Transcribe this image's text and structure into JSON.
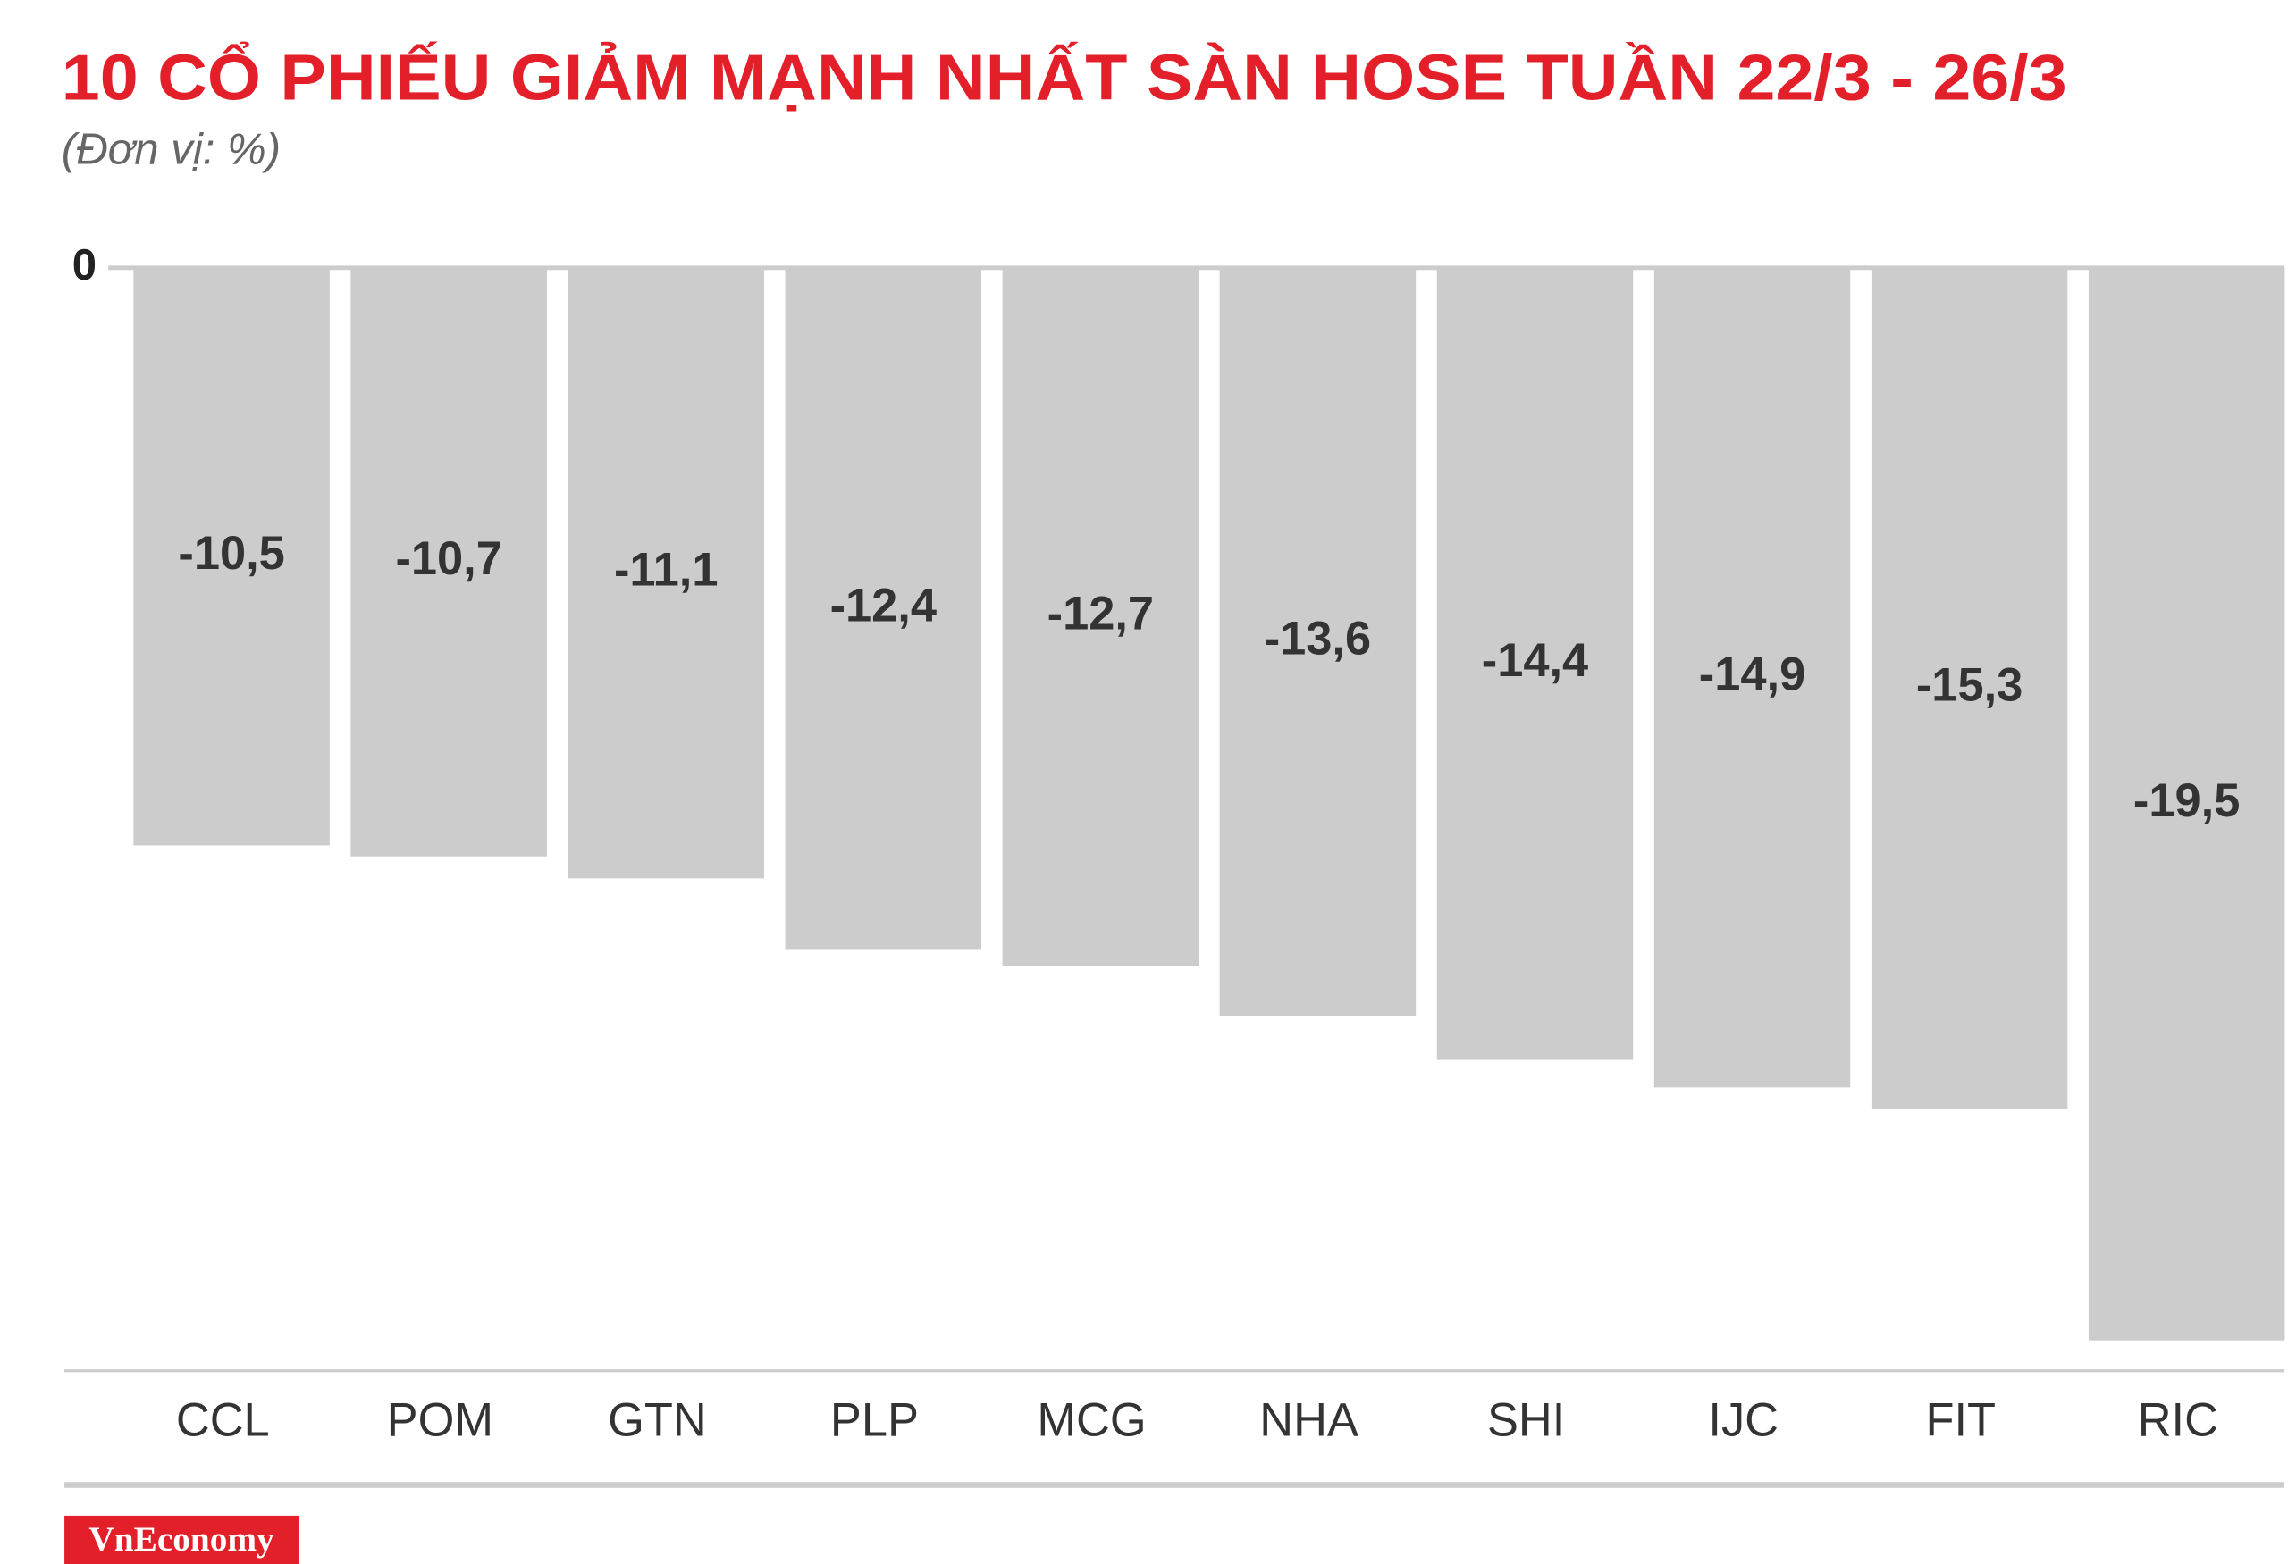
{
  "chart_data": {
    "type": "bar",
    "title": "10 CỔ PHIẾU GIẢM MẠNH NHẤT SÀN HOSE TUẦN 22/3 - 26/3",
    "subtitle": "(Đơn vị: %)",
    "categories": [
      "CCL",
      "POM",
      "GTN",
      "PLP",
      "MCG",
      "NHA",
      "SHI",
      "IJC",
      "FIT",
      "RIC"
    ],
    "values": [
      -10.5,
      -10.7,
      -11.1,
      -12.4,
      -12.7,
      -13.6,
      -14.4,
      -14.9,
      -15.3,
      -19.5
    ],
    "value_labels": [
      "-10,5",
      "-10,7",
      "-11,1",
      "-12,4",
      "-12,7",
      "-13,6",
      "-14,4",
      "-14,9",
      "-15,3",
      "-19,5"
    ],
    "color": "#cccccc",
    "ylim": [
      -20,
      0
    ],
    "yticks": [
      0
    ],
    "grid": false,
    "logo": "VnEconomy"
  }
}
